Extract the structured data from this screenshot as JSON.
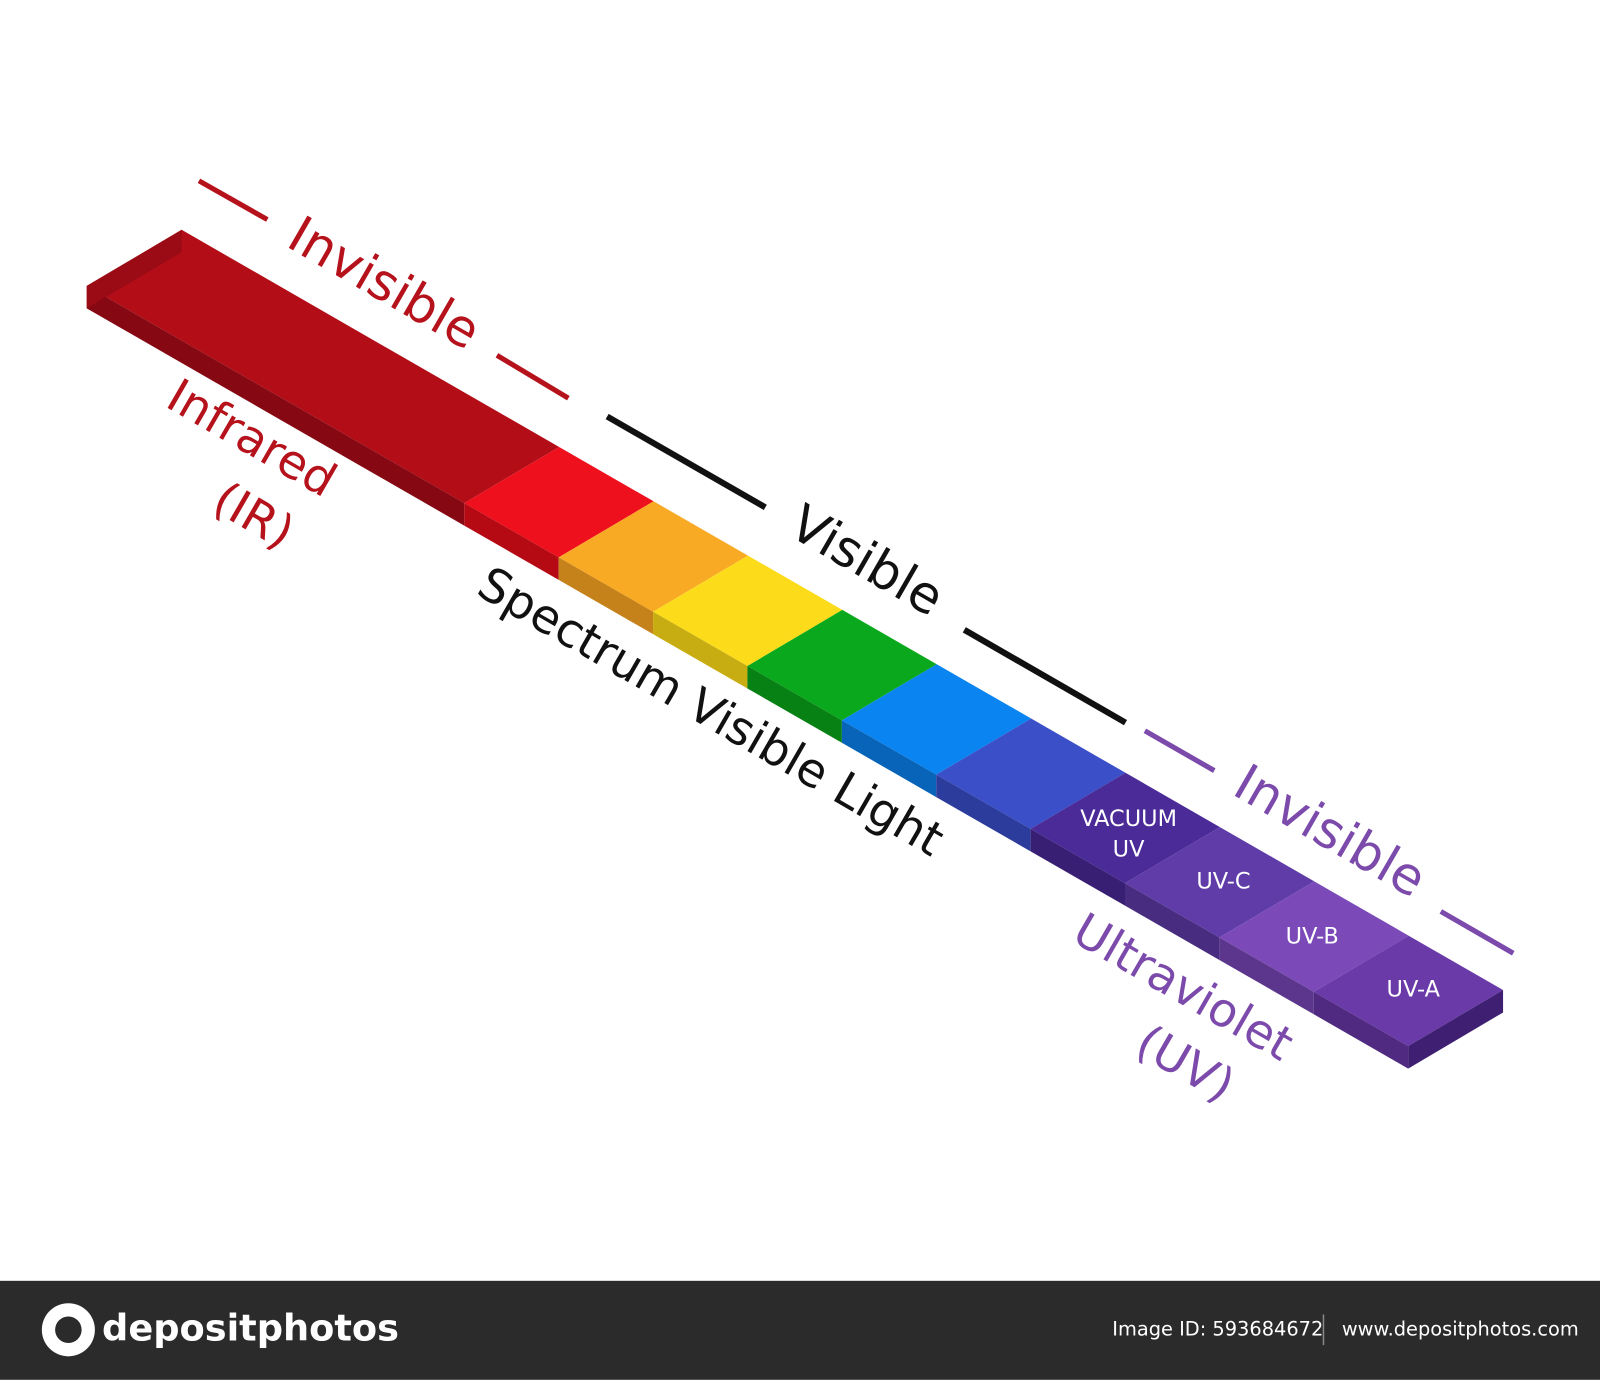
{
  "diagram": {
    "infrared": {
      "heading": "Invisible",
      "label": [
        "Infrared",
        "(IR)"
      ]
    },
    "visible": {
      "heading": "Visible",
      "label": "Spectrum Visible Light"
    },
    "ultraviolet": {
      "heading": "Invisible",
      "label": [
        "Ultraviolet",
        "(UV)"
      ],
      "bands": [
        [
          "VACUUM",
          "UV"
        ],
        "UV-C",
        "UV-B",
        "UV-A"
      ]
    }
  },
  "footer": {
    "logo": "depositphotos",
    "image_id": "Image ID: 593684672",
    "site": "www.depositphotos.com"
  }
}
